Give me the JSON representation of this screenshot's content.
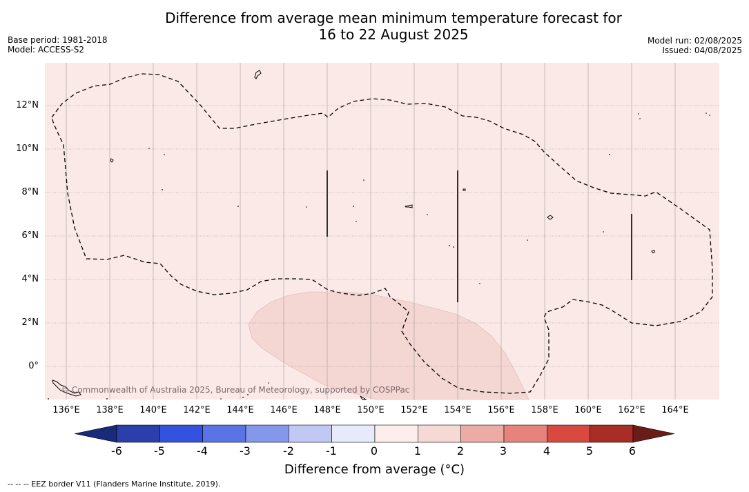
{
  "header": {
    "title_line1": "Difference from average mean minimum temperature forecast for",
    "title_line2": "16 to 22 August 2025",
    "base_period": "Base period: 1981-2018",
    "model": "Model: ACCESS-S2",
    "model_run": "Model run: 02/08/2025",
    "issued": "Issued: 04/08/2025"
  },
  "map": {
    "y_ticks": [
      "12°N",
      "10°N",
      "8°N",
      "6°N",
      "4°N",
      "2°N",
      "0°"
    ],
    "x_ticks": [
      "136°E",
      "138°E",
      "140°E",
      "142°E",
      "144°E",
      "146°E",
      "148°E",
      "150°E",
      "152°E",
      "154°E",
      "156°E",
      "158°E",
      "160°E",
      "162°E",
      "164°E"
    ],
    "copyright": "© Commonwealth of Australia 2025, Bureau of Meteorology, supported by COSPPac",
    "background_anomaly_color": "#fbe9e8",
    "warm_anomaly_color": "#f4d6d3"
  },
  "colorbar": {
    "labels": [
      "-6",
      "-5",
      "-4",
      "-3",
      "-2",
      "-1",
      "0",
      "1",
      "2",
      "3",
      "4",
      "5",
      "6"
    ],
    "colors": [
      "#2b3eab",
      "#3452e0",
      "#5a74e6",
      "#8597ea",
      "#c0c8f3",
      "#e7eafa",
      "#fdeeed",
      "#f6d8d5",
      "#edaba6",
      "#e6837c",
      "#d84a40",
      "#a92c25"
    ],
    "under_color": "#1a2a7a",
    "over_color": "#6a1c19",
    "title": "Difference from average (°C)"
  },
  "footnote": "-- -- -- EEZ border V11 (Flanders Marine Institute, 2019)."
}
